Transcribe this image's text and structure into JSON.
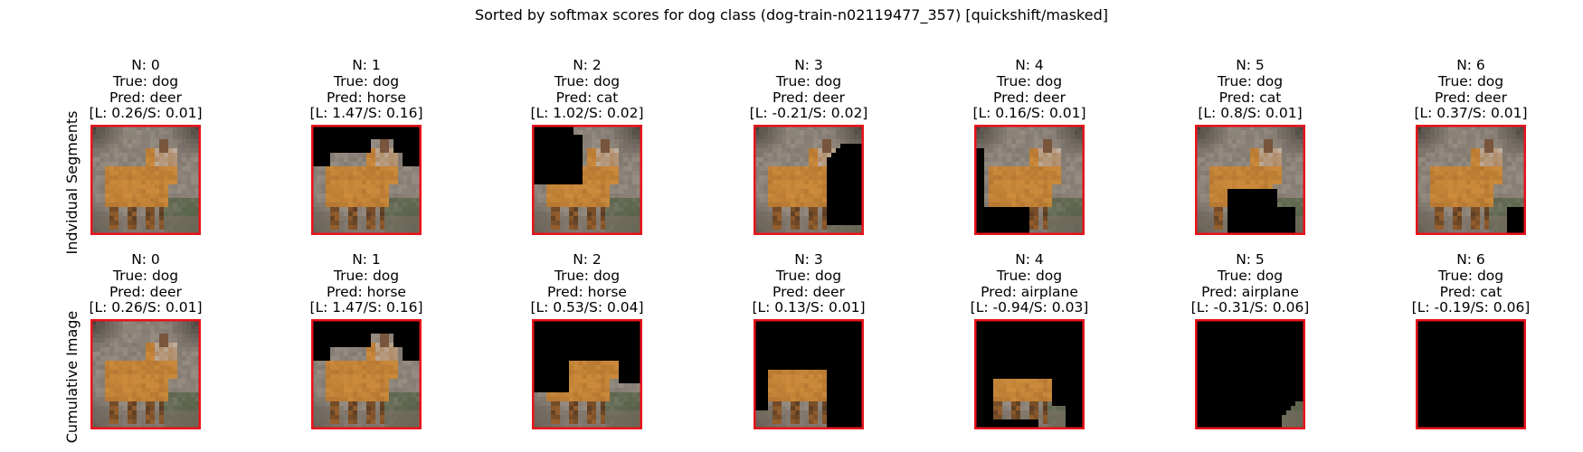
{
  "figure": {
    "title": "Sorted by softmax scores for dog class (dog-train-n02119477_357) [quickshift/masked]"
  },
  "rows": [
    {
      "label": "Indvidual Segments",
      "panels": [
        {
          "n": "N: 0",
          "true_label": "True: dog",
          "pred": "Pred: deer",
          "scores": "[L: 0.26/S: 0.01]",
          "mask": "none"
        },
        {
          "n": "N: 1",
          "true_label": "True: dog",
          "pred": "Pred: horse",
          "scores": "[L: 1.47/S: 0.16]",
          "mask": "top-background"
        },
        {
          "n": "N: 2",
          "true_label": "True: dog",
          "pred": "Pred: cat",
          "scores": "[L: 1.02/S: 0.02]",
          "mask": "left-body"
        },
        {
          "n": "N: 3",
          "true_label": "True: dog",
          "pred": "Pred: deer",
          "scores": "[L: -0.21/S: 0.02]",
          "mask": "right-side"
        },
        {
          "n": "N: 4",
          "true_label": "True: dog",
          "pred": "Pred: deer",
          "scores": "[L: 0.16/S: 0.01]",
          "mask": "bottom-left"
        },
        {
          "n": "N: 5",
          "true_label": "True: dog",
          "pred": "Pred: cat",
          "scores": "[L: 0.8/S: 0.01]",
          "mask": "bottom-center"
        },
        {
          "n": "N: 6",
          "true_label": "True: dog",
          "pred": "Pred: deer",
          "scores": "[L: 0.37/S: 0.01]",
          "mask": "bottom-right"
        }
      ]
    },
    {
      "label": "Cumulative Image",
      "panels": [
        {
          "n": "N: 0",
          "true_label": "True: dog",
          "pred": "Pred: deer",
          "scores": "[L: 0.26/S: 0.01]",
          "mask": "none"
        },
        {
          "n": "N: 1",
          "true_label": "True: dog",
          "pred": "Pred: horse",
          "scores": "[L: 1.47/S: 0.16]",
          "mask": "top-background"
        },
        {
          "n": "N: 2",
          "true_label": "True: dog",
          "pred": "Pred: horse",
          "scores": "[L: 0.53/S: 0.04]",
          "mask": "cumulative-2"
        },
        {
          "n": "N: 3",
          "true_label": "True: dog",
          "pred": "Pred: deer",
          "scores": "[L: 0.13/S: 0.01]",
          "mask": "cumulative-3"
        },
        {
          "n": "N: 4",
          "true_label": "True: dog",
          "pred": "Pred: airplane",
          "scores": "[L: -0.94/S: 0.03]",
          "mask": "cumulative-4"
        },
        {
          "n": "N: 5",
          "true_label": "True: dog",
          "pred": "Pred: airplane",
          "scores": "[L: -0.31/S: 0.06]",
          "mask": "cumulative-5"
        },
        {
          "n": "N: 6",
          "true_label": "True: dog",
          "pred": "Pred: cat",
          "scores": "[L: -0.19/S: 0.06]",
          "mask": "all"
        }
      ]
    }
  ],
  "colors": {
    "frame": "#e8141c",
    "mask": "#000000",
    "background_rock": "#8f857c",
    "fox_fur": "#c98a3a",
    "ground": "#6e6458"
  },
  "chart_data": {
    "type": "image-grid",
    "title": "Sorted by softmax scores for dog class (dog-train-n02119477_357) [quickshift/masked]",
    "row_labels": [
      "Indvidual Segments",
      "Cumulative Image"
    ],
    "columns": [
      "N: 0",
      "N: 1",
      "N: 2",
      "N: 3",
      "N: 4",
      "N: 5",
      "N: 6"
    ],
    "series": [
      {
        "name": "Indvidual Segments",
        "pred": [
          "deer",
          "horse",
          "cat",
          "deer",
          "deer",
          "cat",
          "deer"
        ],
        "L": [
          0.26,
          1.47,
          1.02,
          -0.21,
          0.16,
          0.8,
          0.37
        ],
        "S": [
          0.01,
          0.16,
          0.02,
          0.02,
          0.01,
          0.01,
          0.01
        ]
      },
      {
        "name": "Cumulative Image",
        "pred": [
          "deer",
          "horse",
          "horse",
          "deer",
          "airplane",
          "airplane",
          "cat"
        ],
        "L": [
          0.26,
          1.47,
          0.53,
          0.13,
          -0.94,
          -0.31,
          -0.19
        ],
        "S": [
          0.01,
          0.16,
          0.04,
          0.01,
          0.03,
          0.06,
          0.06
        ]
      }
    ],
    "true_class": "dog"
  }
}
